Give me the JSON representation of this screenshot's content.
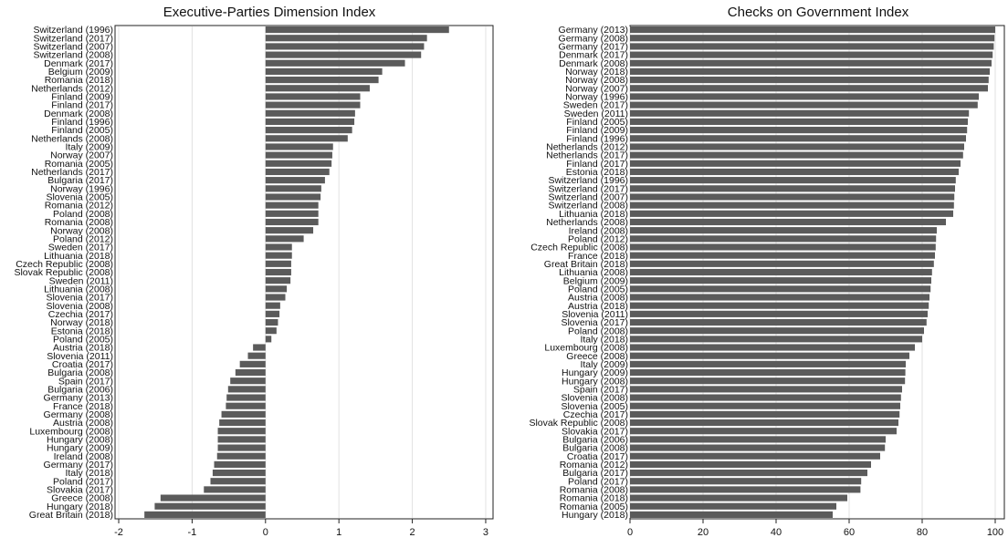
{
  "chart_data": [
    {
      "type": "bar",
      "orientation": "horizontal",
      "title": "Executive-Parties Dimension Index",
      "xlabel": "",
      "ylabel": "",
      "xlim": [
        -2.05,
        3.1
      ],
      "xticks": [
        -2,
        -1,
        0,
        1,
        2,
        3
      ],
      "grid": true,
      "bar_color": "#5b5b5b",
      "categories": [
        "Switzerland (1996)",
        "Switzerland (2017)",
        "Switzerland (2007)",
        "Switzerland (2008)",
        "Denmark (2017)",
        "Belgium (2009)",
        "Romania (2018)",
        "Netherlands (2012)",
        "Finland (2009)",
        "Finland (2017)",
        "Denmark (2008)",
        "Finland (1996)",
        "Finland (2005)",
        "Netherlands (2008)",
        "Italy (2009)",
        "Norway (2007)",
        "Romania (2005)",
        "Netherlands (2017)",
        "Bulgaria (2017)",
        "Norway (1996)",
        "Slovenia (2005)",
        "Romania (2012)",
        "Poland (2008)",
        "Romania (2008)",
        "Norway (2008)",
        "Poland (2012)",
        "Sweden (2017)",
        "Lithuania (2018)",
        "Czech Republic (2008)",
        "Slovak Republic (2008)",
        "Sweden (2011)",
        "Lithuania (2008)",
        "Slovenia (2017)",
        "Slovenia (2008)",
        "Czechia (2017)",
        "Norway (2018)",
        "Estonia (2018)",
        "Poland (2005)",
        "Austria (2018)",
        "Slovenia (2011)",
        "Croatia (2017)",
        "Bulgaria (2008)",
        "Spain (2017)",
        "Bulgaria (2006)",
        "Germany (2013)",
        "France (2018)",
        "Germany (2008)",
        "Austria (2008)",
        "Luxembourg (2008)",
        "Hungary (2008)",
        "Hungary (2009)",
        "Ireland (2008)",
        "Germany (2017)",
        "Italy (2018)",
        "Poland (2017)",
        "Slovakia (2017)",
        "Greece (2008)",
        "Hungary (2018)",
        "Great Britain (2018)"
      ],
      "values": [
        2.5,
        2.2,
        2.16,
        2.12,
        1.9,
        1.59,
        1.54,
        1.42,
        1.29,
        1.29,
        1.22,
        1.21,
        1.18,
        1.12,
        0.92,
        0.91,
        0.9,
        0.87,
        0.81,
        0.76,
        0.75,
        0.72,
        0.72,
        0.72,
        0.65,
        0.52,
        0.36,
        0.36,
        0.35,
        0.35,
        0.34,
        0.29,
        0.27,
        0.2,
        0.19,
        0.17,
        0.15,
        0.08,
        -0.17,
        -0.24,
        -0.35,
        -0.41,
        -0.48,
        -0.51,
        -0.53,
        -0.54,
        -0.6,
        -0.63,
        -0.65,
        -0.65,
        -0.65,
        -0.66,
        -0.7,
        -0.72,
        -0.75,
        -0.84,
        -1.43,
        -1.51,
        -1.65
      ]
    },
    {
      "type": "bar",
      "orientation": "horizontal",
      "title": "Checks on Government Index",
      "xlabel": "",
      "ylabel": "",
      "xlim": [
        0,
        102.5
      ],
      "xticks": [
        0,
        20,
        40,
        60,
        80,
        100
      ],
      "grid": true,
      "bar_color": "#5b5b5b",
      "categories": [
        "Germany (2013)",
        "Germany (2008)",
        "Germany (2017)",
        "Denmark (2017)",
        "Denmark (2008)",
        "Norway (2018)",
        "Norway (2008)",
        "Norway (2007)",
        "Norway (1996)",
        "Sweden (2017)",
        "Sweden (2011)",
        "Finland (2005)",
        "Finland (2009)",
        "Finland (1996)",
        "Netherlands (2012)",
        "Netherlands (2017)",
        "Finland (2017)",
        "Estonia (2018)",
        "Switzerland (1996)",
        "Switzerland (2017)",
        "Switzerland (2007)",
        "Switzerland (2008)",
        "Lithuania (2018)",
        "Netherlands (2008)",
        "Ireland (2008)",
        "Poland (2012)",
        "Czech Republic (2008)",
        "France (2018)",
        "Great Britain (2018)",
        "Lithuania (2008)",
        "Belgium (2009)",
        "Poland (2005)",
        "Austria (2008)",
        "Austria (2018)",
        "Slovenia (2011)",
        "Slovenia (2017)",
        "Poland (2008)",
        "Italy (2018)",
        "Luxembourg (2008)",
        "Greece (2008)",
        "Italy (2009)",
        "Hungary (2009)",
        "Hungary (2008)",
        "Spain (2017)",
        "Slovenia (2008)",
        "Slovenia (2005)",
        "Czechia (2017)",
        "Slovak Republic (2008)",
        "Slovakia (2017)",
        "Bulgaria (2006)",
        "Bulgaria (2008)",
        "Croatia (2017)",
        "Romania (2012)",
        "Bulgaria (2017)",
        "Poland (2017)",
        "Romania (2008)",
        "Romania (2018)",
        "Romania (2005)",
        "Hungary (2018)"
      ],
      "values": [
        100,
        99.8,
        99.6,
        99.3,
        99,
        98.5,
        98.2,
        98,
        95.5,
        95.2,
        92.8,
        92.5,
        92.3,
        92,
        91.5,
        91.2,
        90.5,
        90,
        89.2,
        89,
        88.8,
        88.7,
        88.5,
        86.5,
        84,
        83.8,
        83.7,
        83.5,
        83.2,
        82.7,
        82.5,
        82.3,
        82,
        81.8,
        81.5,
        81.2,
        80.5,
        80,
        78,
        76.5,
        75.5,
        75.4,
        75.3,
        74.5,
        74.2,
        74,
        73.8,
        73.5,
        73,
        70,
        69.8,
        68.5,
        66,
        65,
        63.3,
        63.1,
        59.5,
        56.5,
        55.5
      ]
    }
  ]
}
